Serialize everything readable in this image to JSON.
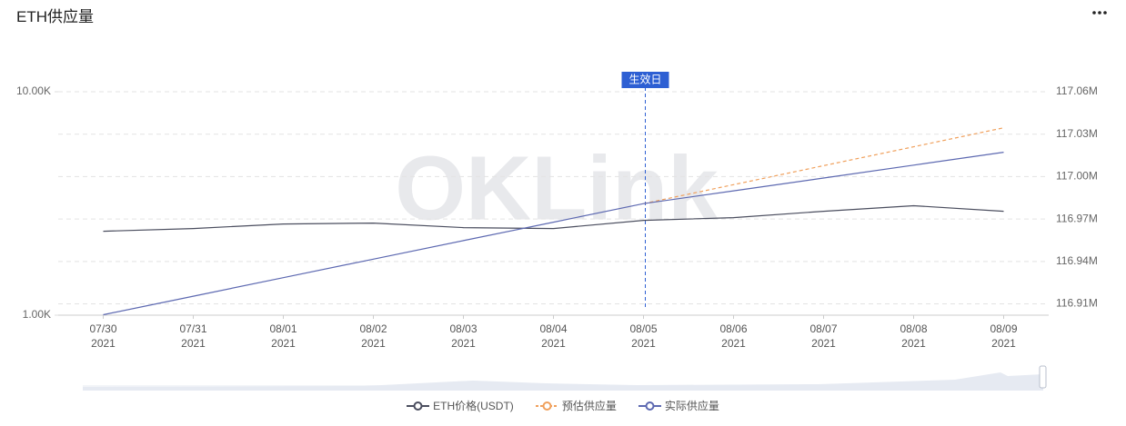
{
  "title": "ETH供应量",
  "watermark": "OKLink",
  "chart_data": {
    "type": "line",
    "categories": [
      "07/30 2021",
      "07/31 2021",
      "08/01 2021",
      "08/02 2021",
      "08/03 2021",
      "08/04 2021",
      "08/05 2021",
      "08/06 2021",
      "08/07 2021",
      "08/08 2021",
      "08/09 2021"
    ],
    "yscale": "log",
    "ylim": [
      1000,
      10000
    ],
    "yticks": [
      {
        "value": 1000,
        "label": "1.00K"
      },
      {
        "value": 10000,
        "label": "10.00K"
      }
    ],
    "y2lim": [
      116.902,
      117.06
    ],
    "y2ticks": [
      {
        "value": 116.91,
        "label": "116.91M"
      },
      {
        "value": 116.94,
        "label": "116.94M"
      },
      {
        "value": 116.97,
        "label": "116.97M"
      },
      {
        "value": 117.0,
        "label": "117.00M"
      },
      {
        "value": 117.03,
        "label": "117.03M"
      },
      {
        "value": 117.06,
        "label": "117.06M"
      }
    ],
    "grid": true,
    "legend": "bottom",
    "annotation": {
      "text": "生效日",
      "at": "08/05 2021"
    },
    "series": [
      {
        "name": "ETH价格(USDT)",
        "color": "#4a4d5e",
        "dashed": false,
        "values": [
          2374,
          2442,
          2560,
          2584,
          2465,
          2442,
          2658,
          2733,
          2919,
          3088,
          2919
        ]
      },
      {
        "name": "预估供应量",
        "color": "#f0a05c",
        "dashed": true,
        "axis": "y2",
        "values": [
          null,
          null,
          null,
          null,
          null,
          null,
          116.9809,
          116.9943,
          117.0077,
          117.0211,
          117.0345
        ]
      },
      {
        "name": "实际供应量",
        "color": "#5d69b1",
        "dashed": false,
        "axis": "y2",
        "values": [
          116.9023,
          116.9154,
          116.9285,
          116.9416,
          116.9547,
          116.9678,
          116.9809,
          116.9899,
          116.999,
          117.0081,
          117.0172
        ]
      }
    ]
  }
}
